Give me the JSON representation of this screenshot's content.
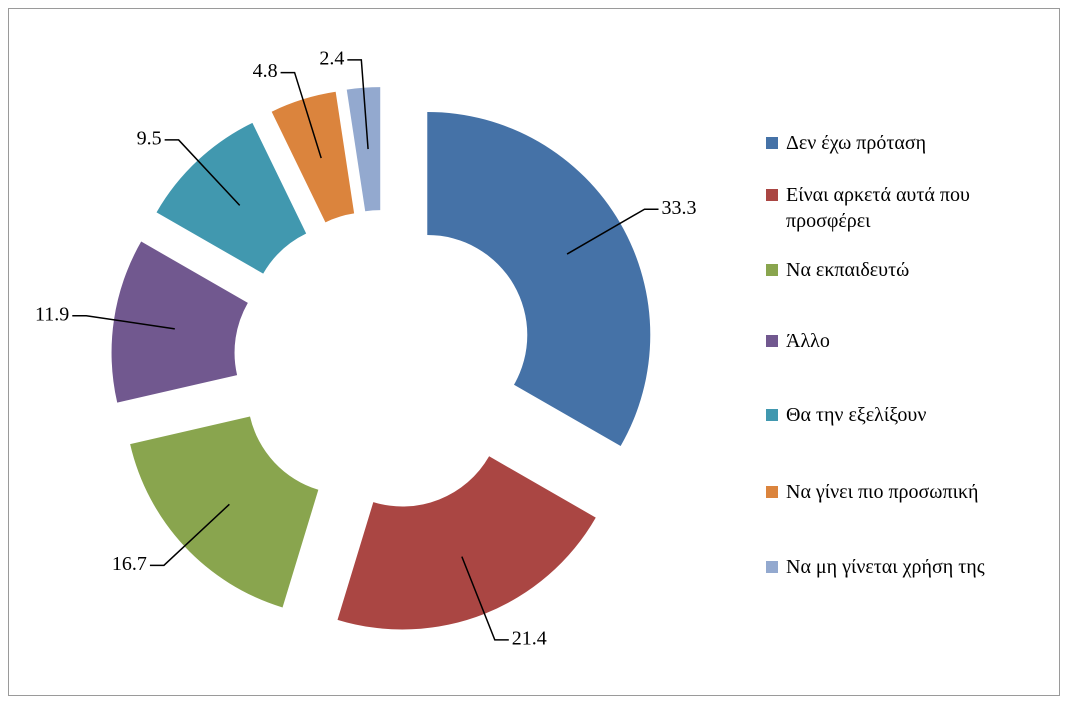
{
  "chart_data": {
    "type": "doughnut",
    "categories": [
      "Δεν έχω πρόταση",
      "Είναι αρκετά αυτά που προσφέρει",
      "Να εκπαιδευτώ",
      "Άλλο",
      "Θα την εξελίξουν",
      "Να γίνει πιο προσωπική",
      "Να μη γίνεται χρήση της"
    ],
    "values": [
      33.3,
      21.4,
      16.7,
      11.9,
      9.5,
      4.8,
      2.4
    ],
    "colors": [
      "#4572a7",
      "#aa4643",
      "#89a54e",
      "#71588f",
      "#4198af",
      "#db843d",
      "#93a9cf"
    ],
    "legend": "right"
  }
}
